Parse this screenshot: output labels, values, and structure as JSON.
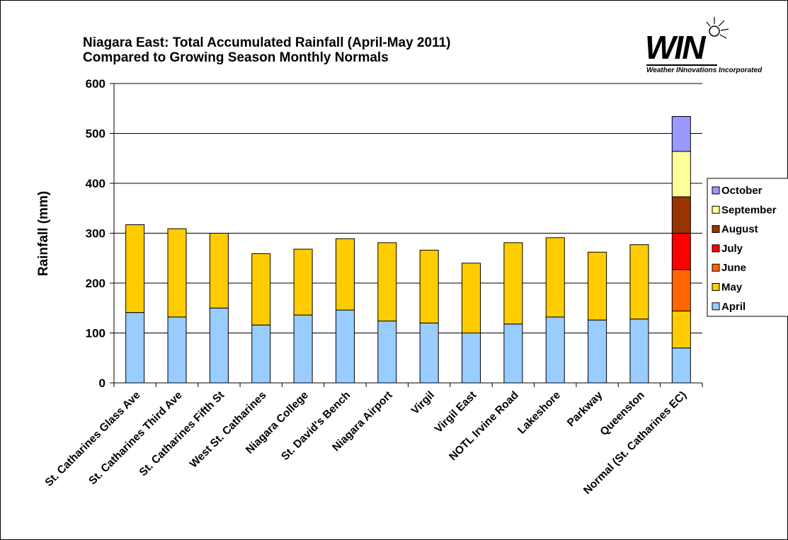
{
  "title_lines": [
    "Niagara East: Total Accumulated Rainfall (April-May 2011)",
    "Compared to Growing Season Monthly Normals"
  ],
  "logo": {
    "mark": "WIN",
    "subtitle": "Weather INnovations Incorporated",
    "icon": "sun-icon"
  },
  "chart_data": {
    "type": "bar",
    "stacked": true,
    "title": "Niagara East: Total Accumulated Rainfall (April-May 2011) Compared to Growing Season Monthly Normals",
    "xlabel": "",
    "ylabel": "Rainfall (mm)",
    "ylim": [
      0,
      600
    ],
    "yticks": [
      0,
      100,
      200,
      300,
      400,
      500,
      600
    ],
    "grid": true,
    "legend_position": "right",
    "categories": [
      "St. Catharines Glass Ave",
      "St. Catharines Third Ave",
      "St. Catharines Fifth St",
      "West St. Catharines",
      "Niagara College",
      "St. David's Bench",
      "Niagara Airport",
      "Virgil",
      "Virgil East",
      "NOTL Irvine Road",
      "Lakeshore",
      "Parkway",
      "Queenston",
      "Normal (St. Catharines EC)"
    ],
    "series": [
      {
        "name": "April",
        "color": "#99ccff",
        "values": [
          141,
          132,
          150,
          116,
          136,
          146,
          124,
          120,
          100,
          118,
          132,
          126,
          128,
          70
        ]
      },
      {
        "name": "May",
        "color": "#ffcc00",
        "values": [
          176,
          177,
          150,
          143,
          132,
          143,
          157,
          146,
          140,
          163,
          159,
          136,
          149,
          74
        ]
      },
      {
        "name": "June",
        "color": "#ff6600",
        "values": [
          0,
          0,
          0,
          0,
          0,
          0,
          0,
          0,
          0,
          0,
          0,
          0,
          0,
          83
        ]
      },
      {
        "name": "July",
        "color": "#ff0000",
        "values": [
          0,
          0,
          0,
          0,
          0,
          0,
          0,
          0,
          0,
          0,
          0,
          0,
          0,
          73
        ]
      },
      {
        "name": "August",
        "color": "#993300",
        "values": [
          0,
          0,
          0,
          0,
          0,
          0,
          0,
          0,
          0,
          0,
          0,
          0,
          0,
          73
        ]
      },
      {
        "name": "September",
        "color": "#ffff99",
        "values": [
          0,
          0,
          0,
          0,
          0,
          0,
          0,
          0,
          0,
          0,
          0,
          0,
          0,
          91
        ]
      },
      {
        "name": "October",
        "color": "#9999ff",
        "values": [
          0,
          0,
          0,
          0,
          0,
          0,
          0,
          0,
          0,
          0,
          0,
          0,
          0,
          70
        ]
      }
    ]
  }
}
